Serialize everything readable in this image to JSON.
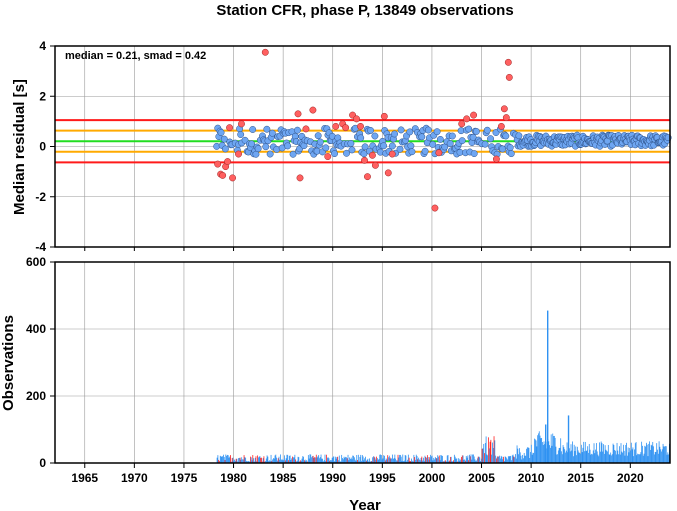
{
  "title": "Station CFR, phase P, 13849 observations",
  "chart_data": [
    {
      "type": "scatter",
      "panel": "residuals",
      "ylabel": "Median residual [s]",
      "xlabel": "",
      "xlim": [
        1962,
        2024
      ],
      "ylim": [
        -4,
        4
      ],
      "yticks": [
        -4,
        -2,
        0,
        2,
        4
      ],
      "grid": true,
      "annotation": "median = 0.21, smad = 0.42",
      "reference_lines": [
        {
          "y": 1.05,
          "color": "#ff1a1a"
        },
        {
          "y": 0.63,
          "color": "#ffaa00"
        },
        {
          "y": 0.21,
          "color": "#22dd22"
        },
        {
          "y": -0.21,
          "color": "#ffaa00"
        },
        {
          "y": -0.63,
          "color": "#ff1a1a"
        }
      ],
      "colors": {
        "inlier": "#6ea6f2",
        "outlier": "#ff6060"
      },
      "outliers": [
        [
          1978.4,
          -0.7
        ],
        [
          1978.7,
          -1.1
        ],
        [
          1978.9,
          -1.15
        ],
        [
          1979.2,
          -0.8
        ],
        [
          1979.4,
          -0.6
        ],
        [
          1979.6,
          0.75
        ],
        [
          1979.9,
          -1.25
        ],
        [
          1980.5,
          -0.3
        ],
        [
          1980.8,
          0.9
        ],
        [
          1983.2,
          3.75
        ],
        [
          1986.5,
          1.3
        ],
        [
          1986.7,
          -1.25
        ],
        [
          1987.3,
          0.7
        ],
        [
          1988.0,
          1.45
        ],
        [
          1989.5,
          -0.4
        ],
        [
          1990.3,
          0.8
        ],
        [
          1991.0,
          0.9
        ],
        [
          1991.3,
          0.75
        ],
        [
          1992.0,
          1.25
        ],
        [
          1992.4,
          1.1
        ],
        [
          1992.8,
          0.8
        ],
        [
          1993.2,
          -0.55
        ],
        [
          1993.5,
          -1.2
        ],
        [
          1994.0,
          -0.35
        ],
        [
          1994.3,
          -0.75
        ],
        [
          1995.2,
          1.2
        ],
        [
          1995.6,
          -1.05
        ],
        [
          1996.0,
          -0.3
        ],
        [
          2000.3,
          -2.45
        ],
        [
          2000.7,
          -0.25
        ],
        [
          2003.0,
          0.9
        ],
        [
          2003.5,
          1.1
        ],
        [
          2004.2,
          1.25
        ],
        [
          2006.5,
          -0.5
        ],
        [
          2007.0,
          0.8
        ],
        [
          2007.3,
          1.5
        ],
        [
          2007.5,
          1.15
        ],
        [
          2007.7,
          3.35
        ],
        [
          2007.8,
          2.75
        ]
      ]
    },
    {
      "type": "bar",
      "panel": "observations",
      "ylabel": "Observations",
      "xlabel": "Year",
      "xlim": [
        1962,
        2024
      ],
      "ylim": [
        0,
        600
      ],
      "yticks": [
        0,
        200,
        400,
        600
      ],
      "xticks": [
        1965,
        1970,
        1975,
        1980,
        1985,
        1990,
        1995,
        2000,
        2005,
        2010,
        2015,
        2020
      ],
      "grid": true,
      "colors": {
        "used": "#2f92f2",
        "outlier": "#ff2020"
      },
      "spikes": [
        {
          "year": 2011.6,
          "value": 455
        },
        {
          "year": 2011.4,
          "value": 115
        },
        {
          "year": 2013.7,
          "value": 142
        }
      ]
    }
  ]
}
